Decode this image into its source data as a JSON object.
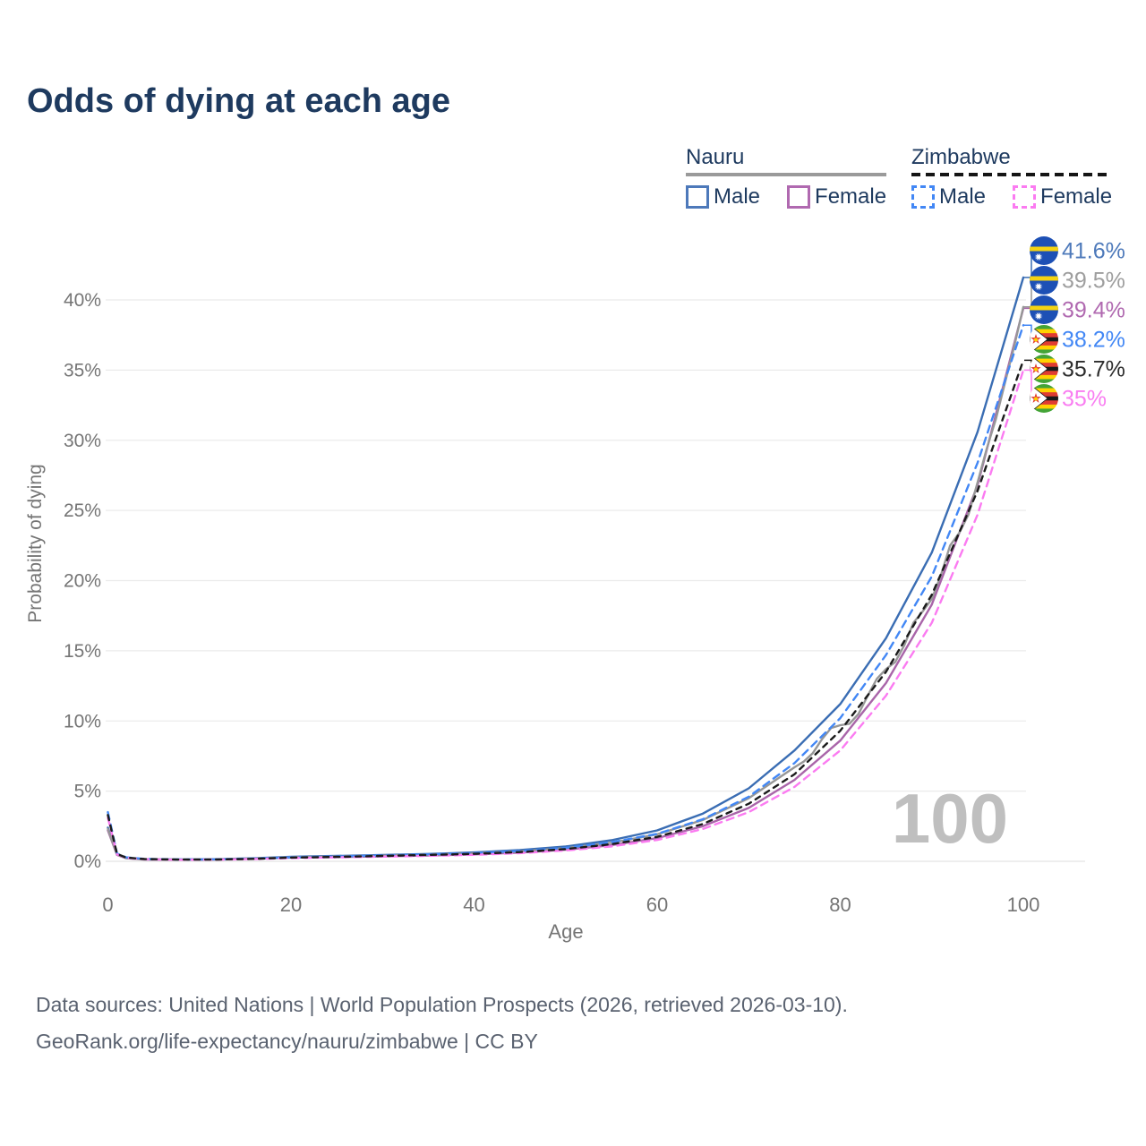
{
  "title": "Odds of dying at each age",
  "legend": {
    "groups": [
      {
        "name": "Nauru",
        "underline_color": "#9a9a9a",
        "underline_dashed": false,
        "items": [
          {
            "label": "Male",
            "color": "#4d79ba",
            "dashed": false
          },
          {
            "label": "Female",
            "color": "#b069b0",
            "dashed": false
          }
        ]
      },
      {
        "name": "Zimbabwe",
        "underline_color": "#151515",
        "underline_dashed": true,
        "items": [
          {
            "label": "Male",
            "color": "#4287f5",
            "dashed": true
          },
          {
            "label": "Female",
            "color": "#fb7bf1",
            "dashed": true
          }
        ]
      }
    ]
  },
  "chart_data": {
    "type": "line",
    "title": "Odds of dying at each age",
    "xlabel": "Age",
    "ylabel": "Probability of dying",
    "xlim": [
      0,
      100
    ],
    "ylim": [
      0,
      40
    ],
    "grid": "horizontal",
    "watermark": "100",
    "x_ticks": [
      {
        "value": 0,
        "label": "0"
      },
      {
        "value": 20,
        "label": "20"
      },
      {
        "value": 40,
        "label": "40"
      },
      {
        "value": 60,
        "label": "60"
      },
      {
        "value": 80,
        "label": "80"
      },
      {
        "value": 100,
        "label": "100"
      }
    ],
    "y_ticks": [
      {
        "value": 0,
        "label": "0%"
      },
      {
        "value": 5,
        "label": "5%"
      },
      {
        "value": 10,
        "label": "10%"
      },
      {
        "value": 15,
        "label": "15%"
      },
      {
        "value": 20,
        "label": "20%"
      },
      {
        "value": 25,
        "label": "25%"
      },
      {
        "value": 30,
        "label": "30%"
      },
      {
        "value": 35,
        "label": "35%"
      },
      {
        "value": 40,
        "label": "40%"
      }
    ],
    "series": [
      {
        "id": "nauru-male",
        "country": "Nauru",
        "sex": "Male",
        "flag": "nauru",
        "color": "#3a6db3",
        "label_color": "#4d79ba",
        "dash": null,
        "end_label": "41.6%",
        "end_value": 41.6,
        "row": 0,
        "points": [
          [
            0,
            2.4
          ],
          [
            1,
            0.5
          ],
          [
            2,
            0.25
          ],
          [
            4,
            0.15
          ],
          [
            8,
            0.13
          ],
          [
            12,
            0.15
          ],
          [
            16,
            0.22
          ],
          [
            20,
            0.32
          ],
          [
            25,
            0.38
          ],
          [
            30,
            0.45
          ],
          [
            35,
            0.52
          ],
          [
            40,
            0.63
          ],
          [
            45,
            0.8
          ],
          [
            50,
            1.05
          ],
          [
            55,
            1.5
          ],
          [
            60,
            2.2
          ],
          [
            65,
            3.4
          ],
          [
            70,
            5.2
          ],
          [
            75,
            7.9
          ],
          [
            80,
            11.2
          ],
          [
            85,
            15.9
          ],
          [
            90,
            22.0
          ],
          [
            95,
            30.6
          ],
          [
            100,
            41.6
          ]
        ]
      },
      {
        "id": "nauru-female",
        "country": "Nauru",
        "sex": "Female",
        "flag": "nauru",
        "color": "#a965a9",
        "label_color": "#b069b0",
        "dash": null,
        "end_label": "39.4%",
        "end_value": 39.4,
        "row": 2,
        "points": [
          [
            0,
            2.2
          ],
          [
            1,
            0.45
          ],
          [
            2,
            0.22
          ],
          [
            4,
            0.13
          ],
          [
            8,
            0.11
          ],
          [
            12,
            0.13
          ],
          [
            16,
            0.18
          ],
          [
            20,
            0.26
          ],
          [
            25,
            0.3
          ],
          [
            30,
            0.35
          ],
          [
            35,
            0.41
          ],
          [
            40,
            0.49
          ],
          [
            45,
            0.62
          ],
          [
            50,
            0.82
          ],
          [
            55,
            1.15
          ],
          [
            60,
            1.65
          ],
          [
            65,
            2.5
          ],
          [
            70,
            3.8
          ],
          [
            75,
            5.8
          ],
          [
            80,
            8.6
          ],
          [
            85,
            12.7
          ],
          [
            90,
            18.3
          ],
          [
            95,
            26.8
          ],
          [
            100,
            39.4
          ]
        ]
      },
      {
        "id": "nauru-both",
        "country": "Nauru",
        "sex": "Both",
        "flag": "nauru",
        "color": "#979797",
        "label_color": "#9e9e9e",
        "dash": null,
        "end_label": "39.5%",
        "end_value": 39.5,
        "row": 1,
        "points": [
          [
            0,
            2.3
          ],
          [
            1,
            0.48
          ],
          [
            2,
            0.23
          ],
          [
            4,
            0.14
          ],
          [
            8,
            0.12
          ],
          [
            12,
            0.14
          ],
          [
            16,
            0.2
          ],
          [
            20,
            0.29
          ],
          [
            25,
            0.34
          ],
          [
            30,
            0.4
          ],
          [
            35,
            0.47
          ],
          [
            40,
            0.56
          ],
          [
            45,
            0.71
          ],
          [
            50,
            0.94
          ],
          [
            55,
            1.32
          ],
          [
            60,
            1.92
          ],
          [
            65,
            2.95
          ],
          [
            70,
            4.5
          ],
          [
            75,
            6.7
          ],
          [
            76,
            7.1
          ],
          [
            77,
            7.7
          ],
          [
            78,
            8.7
          ],
          [
            79,
            9.5
          ],
          [
            80,
            9.7
          ],
          [
            81,
            9.8
          ],
          [
            82,
            10.5
          ],
          [
            83,
            11.8
          ],
          [
            84,
            13.0
          ],
          [
            85,
            13.7
          ],
          [
            86,
            14.2
          ],
          [
            87,
            15.4
          ],
          [
            88,
            17.0
          ],
          [
            89,
            17.8
          ],
          [
            90,
            18.7
          ],
          [
            91,
            20.4
          ],
          [
            92,
            22.5
          ],
          [
            93,
            23.4
          ],
          [
            94,
            24.7
          ],
          [
            95,
            27.0
          ],
          [
            96,
            29.4
          ],
          [
            97,
            31.5
          ],
          [
            98,
            34.1
          ],
          [
            99,
            36.7
          ],
          [
            100,
            39.5
          ]
        ]
      },
      {
        "id": "zimbabwe-male",
        "country": "Zimbabwe",
        "sex": "Male",
        "flag": "zimbabwe",
        "color": "#4287f5",
        "label_color": "#4287f5",
        "dash": "8 6",
        "end_label": "38.2%",
        "end_value": 38.2,
        "row": 3,
        "points": [
          [
            0,
            3.5
          ],
          [
            1,
            0.55
          ],
          [
            2,
            0.28
          ],
          [
            4,
            0.17
          ],
          [
            8,
            0.13
          ],
          [
            12,
            0.14
          ],
          [
            16,
            0.19
          ],
          [
            20,
            0.28
          ],
          [
            25,
            0.34
          ],
          [
            30,
            0.42
          ],
          [
            35,
            0.5
          ],
          [
            40,
            0.59
          ],
          [
            45,
            0.73
          ],
          [
            50,
            0.96
          ],
          [
            55,
            1.36
          ],
          [
            60,
            1.95
          ],
          [
            65,
            3.0
          ],
          [
            70,
            4.6
          ],
          [
            75,
            7.0
          ],
          [
            80,
            10.2
          ],
          [
            85,
            14.7
          ],
          [
            90,
            20.3
          ],
          [
            95,
            28.4
          ],
          [
            100,
            38.2
          ]
        ]
      },
      {
        "id": "zimbabwe-female",
        "country": "Zimbabwe",
        "sex": "Female",
        "flag": "zimbabwe",
        "color": "#fb7bf1",
        "label_color": "#f97df1",
        "dash": "8 6",
        "end_label": "35%",
        "end_value": 35.0,
        "row": 5,
        "points": [
          [
            0,
            3.1
          ],
          [
            1,
            0.5
          ],
          [
            2,
            0.25
          ],
          [
            4,
            0.15
          ],
          [
            8,
            0.11
          ],
          [
            12,
            0.12
          ],
          [
            16,
            0.16
          ],
          [
            20,
            0.23
          ],
          [
            25,
            0.28
          ],
          [
            30,
            0.33
          ],
          [
            35,
            0.39
          ],
          [
            40,
            0.46
          ],
          [
            45,
            0.58
          ],
          [
            50,
            0.77
          ],
          [
            55,
            1.06
          ],
          [
            60,
            1.52
          ],
          [
            65,
            2.3
          ],
          [
            70,
            3.5
          ],
          [
            75,
            5.3
          ],
          [
            80,
            7.9
          ],
          [
            85,
            11.8
          ],
          [
            90,
            17.0
          ],
          [
            95,
            24.7
          ],
          [
            100,
            35.0
          ]
        ]
      },
      {
        "id": "zimbabwe-both",
        "country": "Zimbabwe",
        "sex": "Both",
        "flag": "zimbabwe",
        "color": "#1b1b1b",
        "label_color": "#2c2c2c",
        "dash": "6 6",
        "end_label": "35.7%",
        "end_value": 35.7,
        "row": 4,
        "points": [
          [
            0,
            3.3
          ],
          [
            1,
            0.52
          ],
          [
            2,
            0.26
          ],
          [
            4,
            0.16
          ],
          [
            8,
            0.12
          ],
          [
            12,
            0.13
          ],
          [
            16,
            0.17
          ],
          [
            20,
            0.26
          ],
          [
            25,
            0.31
          ],
          [
            30,
            0.38
          ],
          [
            35,
            0.45
          ],
          [
            40,
            0.53
          ],
          [
            45,
            0.66
          ],
          [
            50,
            0.87
          ],
          [
            55,
            1.22
          ],
          [
            60,
            1.74
          ],
          [
            65,
            2.66
          ],
          [
            70,
            4.1
          ],
          [
            75,
            6.2
          ],
          [
            80,
            9.3
          ],
          [
            85,
            13.5
          ],
          [
            90,
            19.0
          ],
          [
            95,
            26.4
          ],
          [
            100,
            35.7
          ]
        ]
      }
    ]
  },
  "footer": {
    "line1": "Data sources: United Nations | World Population Prospects (2026, retrieved 2026-03-10).",
    "line2": "GeoRank.org/life-expectancy/nauru/zimbabwe | CC BY"
  }
}
